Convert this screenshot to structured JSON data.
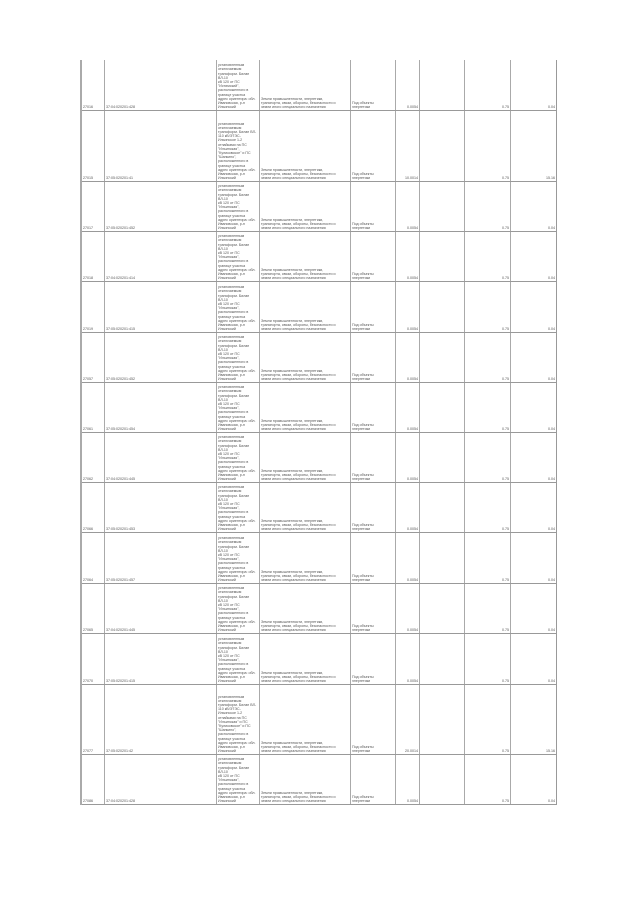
{
  "table": {
    "rows": [
      {
        "id": "27016",
        "cad": "37:04:020201:428",
        "desc": "установленным\nотключаемым\nтрансформ. Билан ВЛ-10\nкВ 120 от ПС\n\"Истимский\",\nрасположенного в\nгранице участка\nадрес ориентира: обл.\nИвановская, р-н\nИльинский",
        "cat": "Земли промышленности, энергетики,\nтранспорта, связи, обороны, безопасности и\nземли иного специального назначения",
        "use": "Под объекты\nэнергетики",
        "area": "0.0054",
        "v1": "0.75",
        "v2": "0.04"
      },
      {
        "id": "27015",
        "cad": "37:05:020201:41",
        "desc": "установленным\nотключаемым\nтрансформ. Билан ВЛ-\n110 кВ/ЭТЭС-\nИльинское 1-2\nотпайками на ПС\n\"Ильинская\",\n\"Куликовское\" и ПС\n\"Шапкино\",\nрасположенного в\nгранице участка\nадрес ориентира: обл.\nИвановская, р-н\nИльинский",
        "cat": "Земли промышленности, энергетики,\nтранспорта, связи, обороны, безопасности и\nземли иного специального назначения",
        "use": "Под объекты\nэнергетики",
        "area": "10.0014",
        "v1": "0.75",
        "v2": "15.16"
      },
      {
        "id": "27017",
        "cad": "37:05:020201:452",
        "desc": "установленным\nотключаемым\nтрансформ. Билан ВЛ-10\nкВ 120 от ПС\n\"Ильинская\",\nрасположенного в\nгранице участка\nадрес ориентира: обл.\nИвановская, р-н\nИльинский",
        "cat": "Земли промышленности, энергетики,\nтранспорта, связи, обороны, безопасности и\nземли иного специального назначения",
        "use": "Под объекты\nэнергетики",
        "area": "0.0054",
        "v1": "0.75",
        "v2": "0.04"
      },
      {
        "id": "27018",
        "cad": "37:04:020201:414",
        "desc": "установленным\nотключаемым\nтрансформ. Билан ВЛ-10\nкВ 120 от ПС\n\"Ильинская\",\nрасположенного в\nгранице участка\nадрес ориентира: обл.\nИвановская, р-н\nИльинский",
        "cat": "Земли промышленности, энергетики,\nтранспорта, связи, обороны, безопасности и\nземли иного специального назначения",
        "use": "Под объекты\nэнергетики",
        "area": "0.0054",
        "v1": "0.75",
        "v2": "0.04"
      },
      {
        "id": "27019",
        "cad": "37:05:020201:415",
        "desc": "установленным\nотключаемым\nтрансформ. Билан ВЛ-10\nкВ 120 от ПС\n\"Ильинская\",\nрасположенного в\nгранице участка\nадрес ориентира: обл.\nИвановская, р-н\nИльинский",
        "cat": "Земли промышленности, энергетики,\nтранспорта, связи, обороны, безопасности и\nземли иного специального назначения",
        "use": "Под объекты\nэнергетики",
        "area": "0.0054",
        "v1": "0.75",
        "v2": "0.04"
      },
      {
        "id": "27057",
        "cad": "37:05:020201:452",
        "desc": "установленным\nотключаемым\nтрансформ. Билан ВЛ-10\nкВ 120 от ПС\n\"Ильинская\",\nрасположенного в\nгранице участка\nадрес ориентира: обл.\nИвановская, р-н\nИльинский",
        "cat": "Земли промышленности, энергетики,\nтранспорта, связи, обороны, безопасности и\nземли иного специального назначения",
        "use": "Под объекты\nэнергетики",
        "area": "0.0054",
        "v1": "0.75",
        "v2": "0.04"
      },
      {
        "id": "27061",
        "cad": "37:05:020201:454",
        "desc": "установленным\nотключаемым\nтрансформ. Билан ВЛ-10\nкВ 120 от ПС\n\"Ильинская\",\nрасположенного в\nгранице участка\nадрес ориентира: обл.\nИвановская, р-н\nИльинский",
        "cat": "Земли промышленности, энергетики,\nтранспорта, связи, обороны, безопасности и\nземли иного специального назначения",
        "use": "Под объекты\nэнергетики",
        "area": "0.0054",
        "v1": "0.75",
        "v2": "0.04"
      },
      {
        "id": "27062",
        "cad": "37:04:020201:445",
        "desc": "установленным\nотключаемым\nтрансформ. Билан ВЛ-10\nкВ 120 от ПС\n\"Ильинская\",\nрасположенного в\nгранице участка\nадрес ориентира: обл.\nИвановская, р-н\nИльинский",
        "cat": "Земли промышленности, энергетики,\nтранспорта, связи, обороны, безопасности и\nземли иного специального назначения",
        "use": "Под объекты\nэнергетики",
        "area": "0.0054",
        "v1": "0.75",
        "v2": "0.04"
      },
      {
        "id": "27066",
        "cad": "37:05:020201:453",
        "desc": "установленным\nотключаемым\nтрансформ. Билан ВЛ-10\nкВ 120 от ПС\n\"Ильинская\",\nрасположенного в\nгранице участка\nадрес ориентира: обл.\nИвановская, р-н\nИльинский",
        "cat": "Земли промышленности, энергетики,\nтранспорта, связи, обороны, безопасности и\nземли иного специального назначения",
        "use": "Под объекты\nэнергетики",
        "area": "0.0054",
        "v1": "0.75",
        "v2": "0.04"
      },
      {
        "id": "27064",
        "cad": "37:05:020201:457",
        "desc": "установленным\nотключаемым\nтрансформ. Билан ВЛ-10\nкВ 120 от ПС\n\"Ильинская\",\nрасположенного в\nгранице участка\nадрес ориентира: обл.\nИвановская, р-н\nИльинский",
        "cat": "Земли промышленности, энергетики,\nтранспорта, связи, обороны, безопасности и\nземли иного специального назначения",
        "use": "Под объекты\nэнергетики",
        "area": "0.0054",
        "v1": "0.75",
        "v2": "0.04"
      },
      {
        "id": "27065",
        "cad": "37:04:020201:445",
        "desc": "установленным\nотключаемым\nтрансформ. Билан ВЛ-10\nкВ 120 от ПС\n\"Ильинская\",\nрасположенного в\nгранице участка\nадрес ориентира: обл.\nИвановская, р-н\nИльинский",
        "cat": "Земли промышленности, энергетики,\nтранспорта, связи, обороны, безопасности и\nземли иного специального назначения",
        "use": "Под объекты\nэнергетики",
        "area": "0.0054",
        "v1": "0.75",
        "v2": "0.04"
      },
      {
        "id": "27070",
        "cad": "37:05:020201:415",
        "desc": "установленным\nотключаемым\nтрансформ. Билан ВЛ-10\nкВ 120 от ПС\n\"Ильинская\",\nрасположенного в\nгранице участка\nадрес ориентира: обл.\nИвановская, р-н\nИльинский",
        "cat": "Земли промышленности, энергетики,\nтранспорта, связи, обороны, безопасности и\nземли иного специального назначения",
        "use": "Под объекты\nэнергетики",
        "area": "0.0054",
        "v1": "0.75",
        "v2": "0.04"
      },
      {
        "id": "27077",
        "cad": "37:05:020201:42",
        "desc": "установленным\nотключаемым\nтрансформ. Билан ВЛ-\n110 кВ/ЭТЭС-\nИльинское 1-2\nотпайками на ПС\n\"Ильинская\" и ПС\n\"Куликовское\" и ПС\n\"Шапкино\",\nрасположенного в\nгранице участка\nадрес ориентира: обл.\nИвановская, р-н\nИльинский",
        "cat": "Земли промышленности, энергетики,\nтранспорта, связи, обороны, безопасности и\nземли иного специального назначения",
        "use": "Под объекты\nэнергетики",
        "area": "20.0014",
        "v1": "0.75",
        "v2": "15.16"
      },
      {
        "id": "27086",
        "cad": "37:04:020201:428",
        "desc": "установленным\nотключаемым\nтрансформ. Билан ВЛ-10\nкВ 120 от ПС\n\"Ильинская\",\nрасположенного в\nгранице участка\nадрес ориентира: обл.\nИвановская, р-н\nИльинский",
        "cat": "Земли промышленности, энергетики,\nтранспорта, связи, обороны, безопасности и\nземли иного специального назначения",
        "use": "Под объекты\nэнергетики",
        "area": "0.0054",
        "v1": "0.75",
        "v2": "0.04"
      }
    ]
  }
}
